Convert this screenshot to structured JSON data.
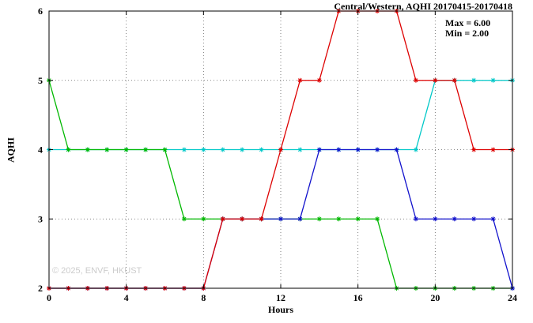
{
  "page": {
    "title": "Central/Western, AQHI 20170415-20170418",
    "stats": {
      "max": "Max = 6.00",
      "min": "Min = 2.00"
    },
    "watermark": "© 2025, ENVF, HKUST"
  },
  "chart_data": {
    "type": "line",
    "title": "Central/Western, AQHI 20170415-20170418",
    "xlabel": "Hours",
    "ylabel": "AQHI",
    "xlim": [
      0,
      24
    ],
    "ylim": [
      2,
      6
    ],
    "xticks": [
      0,
      4,
      8,
      12,
      16,
      20,
      24
    ],
    "yticks": [
      2,
      3,
      4,
      5,
      6
    ],
    "grid": true,
    "legend": "none",
    "annotations": [
      "Max = 6.00",
      "Min = 2.00"
    ],
    "marker": "star",
    "x": [
      0,
      1,
      2,
      3,
      4,
      5,
      6,
      7,
      8,
      9,
      10,
      11,
      12,
      13,
      14,
      15,
      16,
      17,
      18,
      19,
      20,
      21,
      22,
      23,
      24
    ],
    "series": [
      {
        "name": "cyan-series",
        "color": "#00c8c8",
        "values": [
          4,
          4,
          4,
          4,
          4,
          4,
          4,
          4,
          4,
          4,
          4,
          4,
          4,
          4,
          4,
          4,
          4,
          4,
          4,
          4,
          5,
          5,
          5,
          5,
          5
        ]
      },
      {
        "name": "green-series",
        "color": "#00b800",
        "values": [
          5,
          4,
          4,
          4,
          4,
          4,
          4,
          3,
          3,
          3,
          3,
          3,
          3,
          3,
          3,
          3,
          3,
          3,
          2,
          2,
          2,
          2,
          2,
          2,
          2
        ]
      },
      {
        "name": "blue-series",
        "color": "#1212cc",
        "values": [
          2,
          2,
          2,
          2,
          2,
          2,
          2,
          2,
          2,
          3,
          3,
          3,
          3,
          3,
          4,
          4,
          4,
          4,
          4,
          3,
          3,
          3,
          3,
          3,
          2
        ]
      },
      {
        "name": "red-series",
        "color": "#dd0000",
        "values": [
          2,
          2,
          2,
          2,
          2,
          2,
          2,
          2,
          2,
          3,
          3,
          3,
          4,
          5,
          5,
          6,
          6,
          6,
          6,
          5,
          5,
          5,
          4,
          4,
          4
        ]
      }
    ]
  }
}
